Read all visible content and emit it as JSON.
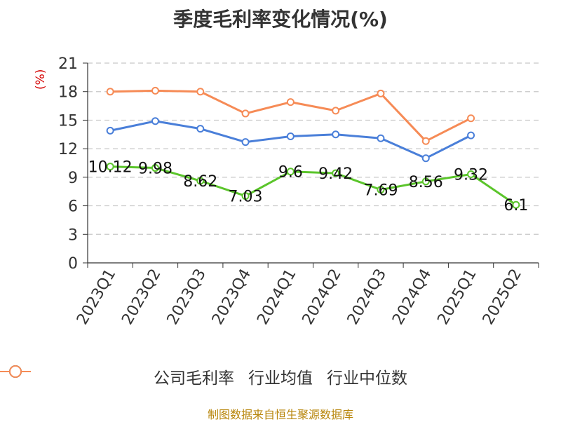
{
  "chart_data": {
    "type": "line",
    "title": "季度毛利率变化情况(%)",
    "ylabel": "(%)",
    "ylim": [
      0,
      21
    ],
    "yticks": [
      0,
      3,
      6,
      9,
      12,
      15,
      18,
      21
    ],
    "categories": [
      "2023Q1",
      "2023Q2",
      "2023Q3",
      "2023Q4",
      "2024Q1",
      "2024Q2",
      "2024Q3",
      "2024Q4",
      "2025Q1",
      "2025Q2"
    ],
    "grid": true,
    "legend_position": "bottom",
    "series": [
      {
        "name": "公司毛利率",
        "color": "#5bc52b",
        "labels": true,
        "values": [
          10.12,
          9.98,
          8.62,
          7.03,
          9.6,
          9.42,
          7.69,
          8.56,
          9.32,
          6.1
        ]
      },
      {
        "name": "行业均值",
        "color": "#4a7fd9",
        "labels": false,
        "values": [
          13.9,
          14.9,
          14.1,
          12.7,
          13.3,
          13.5,
          13.1,
          11.0,
          13.4,
          null
        ]
      },
      {
        "name": "行业中位数",
        "color": "#f68b56",
        "labels": false,
        "values": [
          18.0,
          18.1,
          18.0,
          15.7,
          16.9,
          16.0,
          17.8,
          12.8,
          15.2,
          null
        ]
      }
    ],
    "source": "制图数据来自恒生聚源数据库"
  }
}
